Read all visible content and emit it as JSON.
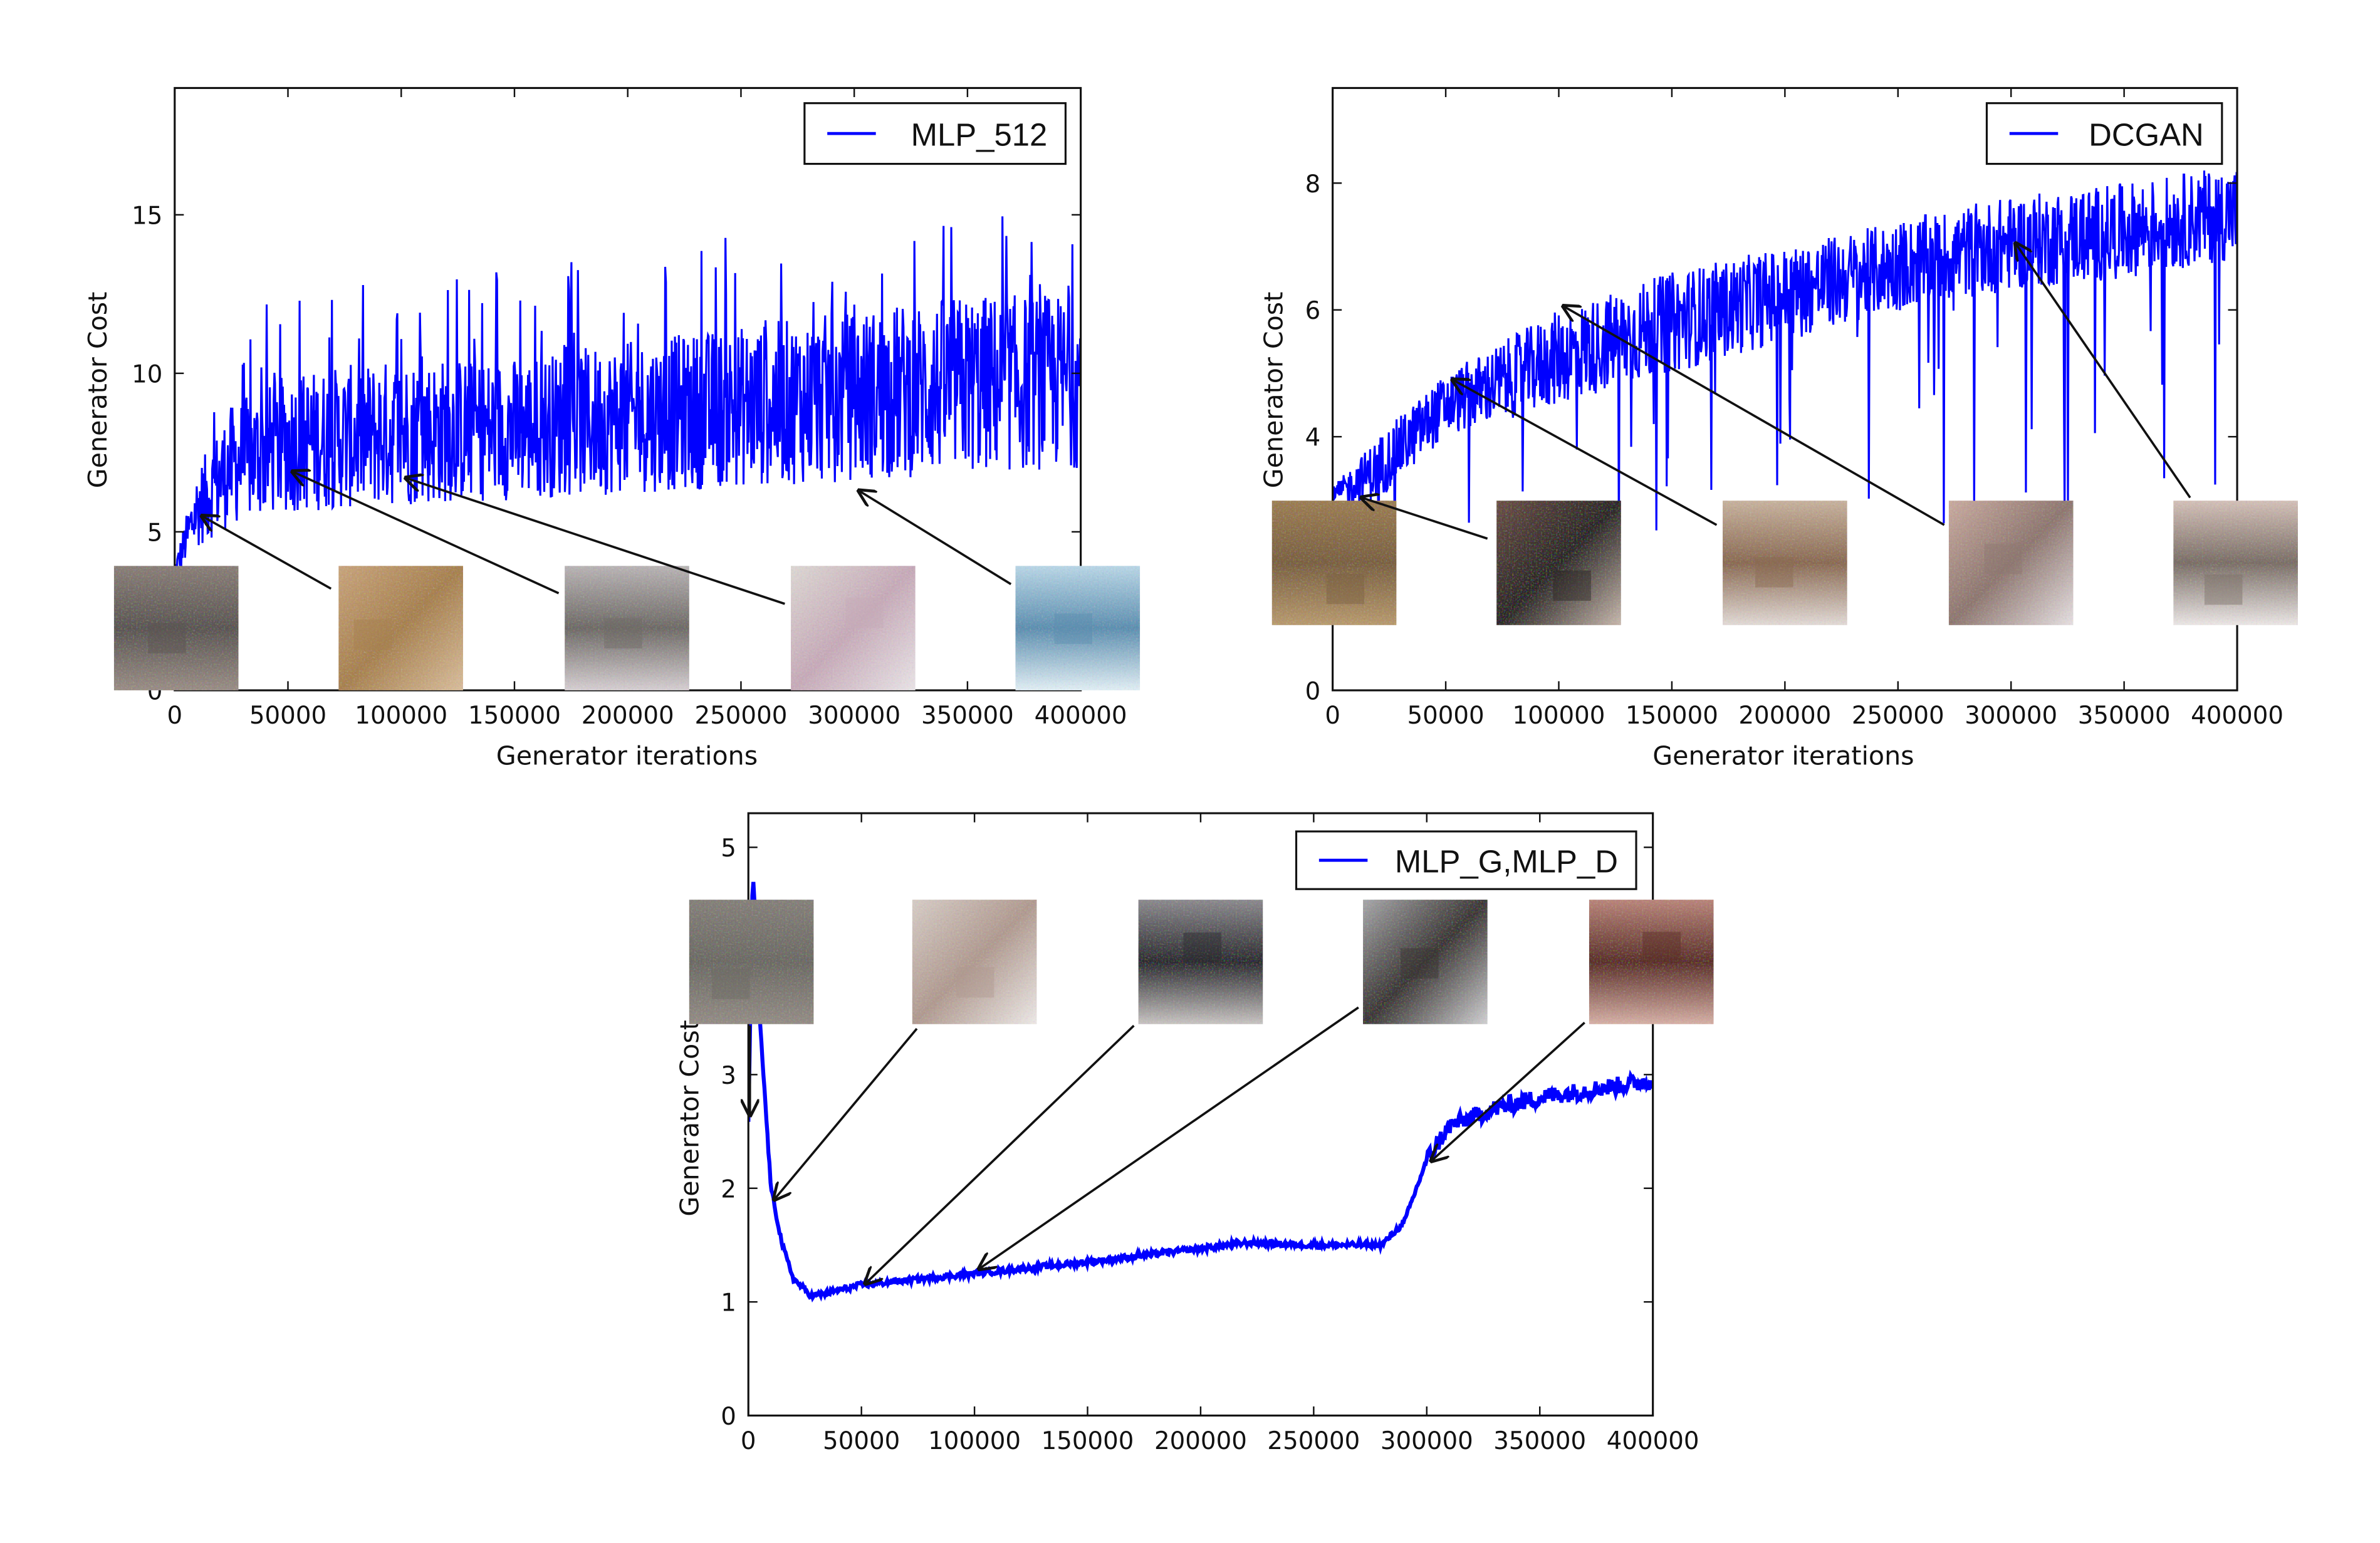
{
  "chart_data": [
    {
      "type": "line",
      "title": "",
      "xlabel": "Generator iterations",
      "ylabel": "Generator Cost",
      "xlim": [
        0,
        400000
      ],
      "ylim": [
        0,
        19
      ],
      "xticks": [
        "0",
        "50000",
        "100000",
        "150000",
        "200000",
        "250000",
        "300000",
        "350000",
        "400000"
      ],
      "yticks": [
        "0",
        "5",
        "10",
        "15"
      ],
      "grid": false,
      "legend_position": "top-right",
      "series": [
        {
          "name": "MLP_512",
          "color": "#0000ff",
          "noisy": true,
          "x": [
            0,
            10000,
            25000,
            50000,
            100000,
            150000,
            200000,
            250000,
            300000,
            350000,
            400000
          ],
          "lower": [
            3.5,
            4.5,
            5.2,
            5.6,
            5.8,
            6.0,
            6.2,
            6.4,
            6.6,
            6.8,
            7.0
          ],
          "upper": [
            4.0,
            7.0,
            9.0,
            10.0,
            10.5,
            10.5,
            11.0,
            11.5,
            12.0,
            12.5,
            12.5
          ],
          "peak": 15.2
        }
      ],
      "annotations": [
        {
          "thumbnail_colors": [
            "#8a7f78",
            "#5a5552",
            "#9a8e86"
          ],
          "target": [
            12000,
            5.5
          ]
        },
        {
          "thumbnail_colors": [
            "#c8a47c",
            "#a7814f",
            "#d8bd9c"
          ],
          "target": [
            52000,
            6.9
          ]
        },
        {
          "thumbnail_colors": [
            "#b9b4b5",
            "#6e6a66",
            "#d6cfd2"
          ],
          "target": [
            102000,
            6.7
          ]
        },
        {
          "thumbnail_colors": [
            "#dcd7d3",
            "#c6aab8",
            "#e8e3e6"
          ],
          "target": [
            302000,
            6.3
          ]
        },
        {
          "thumbnail_colors": [
            "#b9d6e6",
            "#5d8fb0",
            "#e1eef4"
          ],
          "target": [
            302000,
            6.3
          ]
        }
      ]
    },
    {
      "type": "line",
      "title": "",
      "xlabel": "Generator iterations",
      "ylabel": "Generator Cost",
      "xlim": [
        0,
        400000
      ],
      "ylim": [
        0,
        9.5
      ],
      "xticks": [
        "0",
        "50000",
        "100000",
        "150000",
        "200000",
        "250000",
        "300000",
        "350000",
        "400000"
      ],
      "yticks": [
        "0",
        "2",
        "4",
        "6",
        "8"
      ],
      "grid": false,
      "legend_position": "top-right",
      "series": [
        {
          "name": "DCGAN",
          "color": "#0000ff",
          "noisy": true,
          "x": [
            0,
            20000,
            50000,
            100000,
            150000,
            200000,
            250000,
            300000,
            350000,
            400000
          ],
          "lower": [
            2.9,
            3.0,
            4.0,
            4.5,
            5.0,
            5.5,
            6.0,
            6.3,
            6.5,
            6.8
          ],
          "upper": [
            3.2,
            4.0,
            5.0,
            6.0,
            6.6,
            7.0,
            7.4,
            7.8,
            8.0,
            8.3
          ],
          "dip": 1.0
        }
      ],
      "annotations": [
        {
          "thumbnail_colors": [
            "#9c7d52",
            "#7a6040",
            "#b89a6e"
          ],
          "target": [
            12750,
            3.04
          ]
        },
        {
          "thumbnail_colors": [
            "#6a4f45",
            "#2a2624",
            "#c7b8ad"
          ],
          "target": [
            53000,
            4.9
          ]
        },
        {
          "thumbnail_colors": [
            "#c7b29e",
            "#8a6a52",
            "#e2dad6"
          ],
          "target": [
            102000,
            6.06
          ]
        },
        {
          "thumbnail_colors": [
            "#c9aba0",
            "#8e7770",
            "#e6e0e2"
          ],
          "target": [
            302000,
            7.05
          ]
        },
        {
          "thumbnail_colors": [
            "#d3c0b8",
            "#7a6e66",
            "#ebe6e5"
          ],
          "target": [
            302000,
            7.05
          ]
        }
      ]
    },
    {
      "type": "line",
      "title": "",
      "xlabel": "",
      "ylabel": "Generator Cost",
      "xlim": [
        0,
        400000
      ],
      "ylim": [
        0,
        5.3
      ],
      "xticks": [
        "0",
        "50000",
        "100000",
        "150000",
        "200000",
        "250000",
        "300000",
        "350000",
        "400000"
      ],
      "yticks": [
        "0",
        "1",
        "2",
        "3",
        "4",
        "5"
      ],
      "grid": false,
      "legend_position": "top-right",
      "series": [
        {
          "name": "MLP_G,MLP_D",
          "color": "#0000ff",
          "noisy": false,
          "x": [
            0,
            2000,
            5000,
            10000,
            15000,
            20000,
            28000,
            35000,
            50000,
            100000,
            150000,
            200000,
            220000,
            250000,
            280000,
            290000,
            300000,
            310000,
            330000,
            350000,
            400000
          ],
          "values": [
            2.6,
            4.8,
            3.5,
            2.0,
            1.5,
            1.2,
            1.05,
            1.08,
            1.15,
            1.25,
            1.35,
            1.47,
            1.52,
            1.5,
            1.5,
            1.7,
            2.25,
            2.55,
            2.7,
            2.8,
            2.95
          ]
        }
      ],
      "annotations": [
        {
          "thumbnail_colors": [
            "#85807a",
            "#6c6a64",
            "#948d86"
          ],
          "target": [
            700,
            2.64
          ]
        },
        {
          "thumbnail_colors": [
            "#d6ccc6",
            "#b09a90",
            "#ece8e6"
          ],
          "target": [
            11400,
            1.9
          ]
        },
        {
          "thumbnail_colors": [
            "#8c8a8e",
            "#2a2a2e",
            "#c8c4c2"
          ],
          "target": [
            51700,
            1.16
          ]
        },
        {
          "thumbnail_colors": [
            "#a8a8aa",
            "#3a3634",
            "#d0d0d2"
          ],
          "target": [
            102000,
            1.29
          ]
        },
        {
          "thumbnail_colors": [
            "#b9857a",
            "#5a2e26",
            "#d6b0a6"
          ],
          "target": [
            302000,
            2.24
          ]
        }
      ]
    }
  ]
}
